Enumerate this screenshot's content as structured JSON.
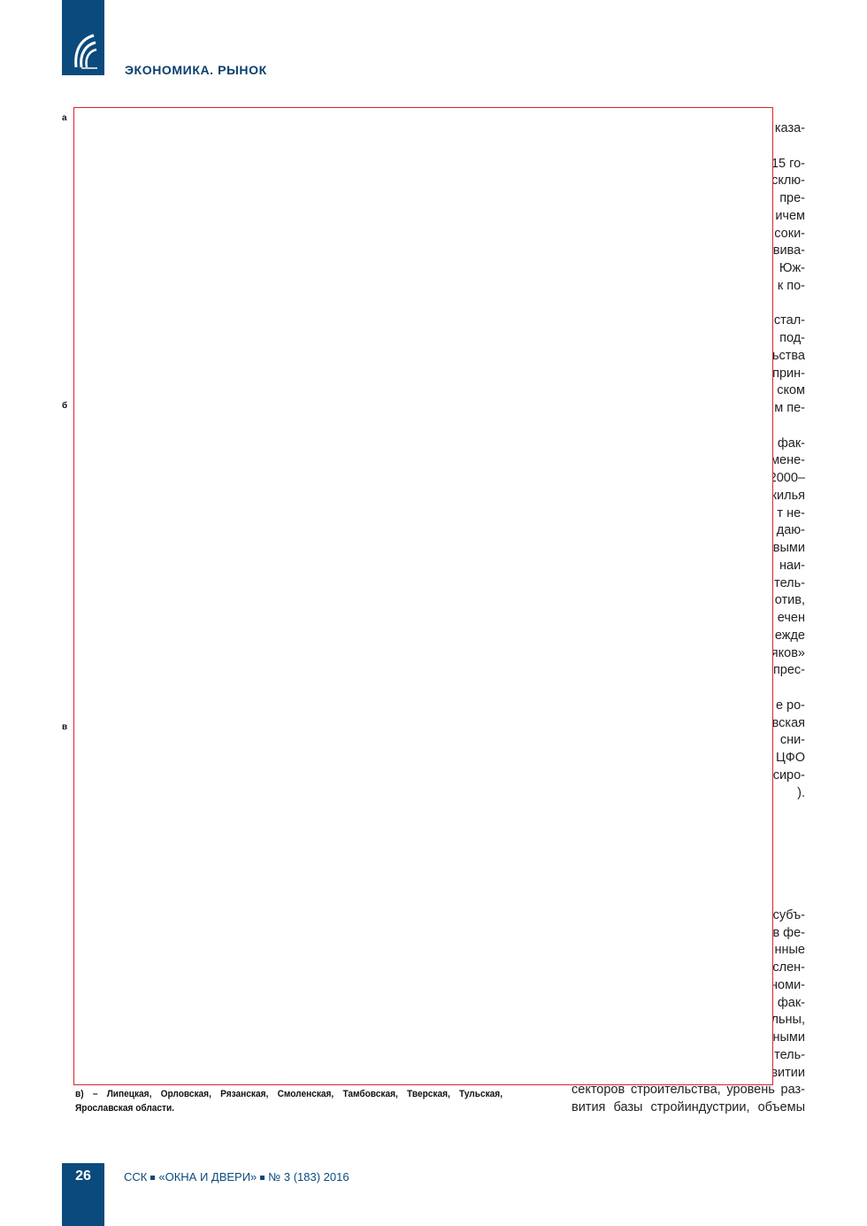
{
  "header": {
    "section_title": "ЭКОНОМИКА. РЫНОК",
    "brand_color": "#0b4a7d",
    "logo": "journal-logo"
  },
  "figure": {
    "labels": [
      "а",
      "б",
      "в"
    ],
    "caption": "в) – Липецкая, Орловская, Рязанская, Смоленская, Тамбовская, Тверская, Тульская, Ярославская области.",
    "overlay_border_color": "#d9232e"
  },
  "column_fragments": [
    [
      "каза-"
    ],
    [
      "15 го-",
      "склю-",
      "пре-",
      "ичем",
      "соки-",
      "вива-",
      "Юж-",
      "к по-"
    ],
    [
      "стал-",
      "под-",
      "ьства",
      "прин-",
      "ском",
      "м пе-"
    ],
    [
      "фак-",
      "мене-",
      "2000–",
      "жилья",
      "т не-",
      "даю-",
      "выми",
      "наи-",
      "тель-",
      "отив,",
      "ечен",
      "ежде",
      "яков»",
      "прес-"
    ],
    [
      "е ро-",
      "вская",
      "сни-",
      "ЦФО",
      "сиро-",
      ")."
    ],
    [
      "субъ-",
      "в фе-",
      "нные",
      "слен-",
      "номи-",
      "фак-",
      "льны,",
      "ными",
      "тель-",
      "витии"
    ]
  ],
  "column_tail": [
    "секторов строительства, уровень раз-",
    "вития базы стройиндустрии, объемы"
  ],
  "footer": {
    "page_number": "26",
    "parts": [
      "ССК",
      "«ОКНА И ДВЕРИ»",
      "№ 3 (183) 2016"
    ]
  }
}
